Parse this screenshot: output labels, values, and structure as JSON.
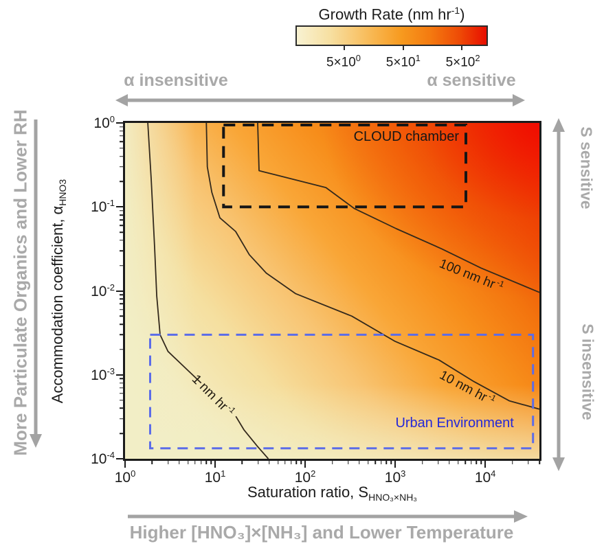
{
  "colorbar": {
    "title_main": "Growth Rate (nm hr",
    "title_sup": "-1",
    "title_post": ")",
    "tick_labels": [
      {
        "base": "5×10",
        "exp": "0"
      },
      {
        "base": "5×10",
        "exp": "1"
      },
      {
        "base": "5×10",
        "exp": "2"
      }
    ],
    "tick_positions": [
      0.25,
      0.56,
      0.87
    ],
    "gradient": [
      "#F8F2D2",
      "#F7DFA0",
      "#F8B751",
      "#F79A1F",
      "#F47B10",
      "#EE4A06",
      "#E80E00"
    ]
  },
  "annotations": {
    "alpha_insensitive": "α insensitive",
    "alpha_sensitive": "α sensitive",
    "s_sensitive": "S sensitive",
    "s_insensitive": "S insensitive",
    "left_axis_note": "More Particulate Organics and Lower RH",
    "bottom_axis_note": "Higher [HNO₃]×[NH₃] and Lower Temperature",
    "gray_color": "#a9a9a9"
  },
  "chart_data": {
    "type": "heatmap",
    "title": "Growth Rate (nm hr⁻¹)",
    "x_axis": {
      "label_main": "Saturation ratio, S",
      "label_sub": "HNO₃×NH₃",
      "scale": "log",
      "range": [
        1,
        40000
      ],
      "ticks": [
        {
          "base": "10",
          "exp": "0",
          "value": 1
        },
        {
          "base": "10",
          "exp": "1",
          "value": 10
        },
        {
          "base": "10",
          "exp": "2",
          "value": 100
        },
        {
          "base": "10",
          "exp": "3",
          "value": 1000
        },
        {
          "base": "10",
          "exp": "4",
          "value": 10000
        }
      ]
    },
    "y_axis": {
      "label_main": "Accommodation coefficient, α",
      "label_sub": "HNO3",
      "scale": "log",
      "range": [
        0.0001,
        1
      ],
      "ticks": [
        {
          "base": "10",
          "exp": "0",
          "value": 1
        },
        {
          "base": "10",
          "exp": "-1",
          "value": 0.1
        },
        {
          "base": "10",
          "exp": "-2",
          "value": 0.01
        },
        {
          "base": "10",
          "exp": "-3",
          "value": 0.001
        },
        {
          "base": "10",
          "exp": "-4",
          "value": 0.0001
        }
      ]
    },
    "colorbar_tick_values_nm_hr": [
      5,
      50,
      500
    ],
    "field_colors": {
      "low": "#F2EEC6",
      "mid": "#F9A233",
      "high": "#F10900"
    },
    "contours": [
      {
        "level": 1,
        "label": {
          "text": "1 nm hr",
          "sup": "-1"
        },
        "label_anchor": [
          9.5,
          0.00057
        ],
        "label_rotation": 45,
        "polylines": [
          [
            [
              1.79,
              1.0
            ],
            [
              1.95,
              0.217
            ],
            [
              2.13,
              0.033
            ],
            [
              2.25,
              0.0087
            ],
            [
              2.45,
              0.003
            ],
            [
              3.0,
              0.0019
            ],
            [
              4.7,
              0.0012
            ],
            [
              7.0,
              0.0008
            ]
          ],
          [
            [
              17.0,
              0.00032
            ],
            [
              21.0,
              0.00022
            ],
            [
              30.0,
              0.000138
            ],
            [
              39.0,
              0.0001
            ]
          ]
        ]
      },
      {
        "level": 10,
        "label": {
          "text": "10 nm hr",
          "sup": "-1"
        },
        "label_anchor": [
          6300,
          0.0007
        ],
        "label_rotation": 28,
        "polylines": [
          [
            [
              8.0,
              1.0
            ],
            [
              8.2,
              0.3
            ],
            [
              9.2,
              0.149
            ],
            [
              11.3,
              0.074
            ],
            [
              16.9,
              0.051
            ],
            [
              24,
              0.027
            ],
            [
              37,
              0.0163
            ],
            [
              78,
              0.0093
            ],
            [
              330,
              0.005
            ],
            [
              1000,
              0.0025
            ],
            [
              3070,
              0.0015
            ],
            [
              7500,
              0.00083
            ],
            [
              18500,
              0.00049
            ],
            [
              40000,
              0.00039
            ]
          ]
        ]
      },
      {
        "level": 100,
        "label": {
          "text": "100 nm hr",
          "sup": "-1"
        },
        "label_anchor": [
          7050,
          0.0154
        ],
        "label_rotation": 22,
        "polylines": [
          [
            [
              29.7,
              1.0
            ],
            [
              30.8,
              0.27
            ],
            [
              170,
              0.17
            ],
            [
              350,
              0.096
            ],
            [
              1030,
              0.055
            ],
            [
              3300,
              0.0316
            ],
            [
              9000,
              0.0187
            ],
            [
              40000,
              0.0096
            ]
          ]
        ]
      }
    ],
    "regions": [
      {
        "name": "CLOUD chamber",
        "border_color": "#161616",
        "label_color": "#161616",
        "x_range": [
          12.4,
          6100
        ],
        "y_range": [
          0.1,
          0.945
        ],
        "dash": "17 11",
        "stroke_width": 4,
        "label_offset": {
          "right": 10,
          "top": 6
        }
      },
      {
        "name": "Urban Environment",
        "border_color": "#5b6ce8",
        "label_color": "#2427d8",
        "x_range": [
          1.9,
          34000
        ],
        "y_range": [
          0.000133,
          0.003
        ],
        "dash": "15 10",
        "stroke_width": 3,
        "label_offset": {
          "right": 28,
          "bottom": 26
        }
      }
    ]
  }
}
